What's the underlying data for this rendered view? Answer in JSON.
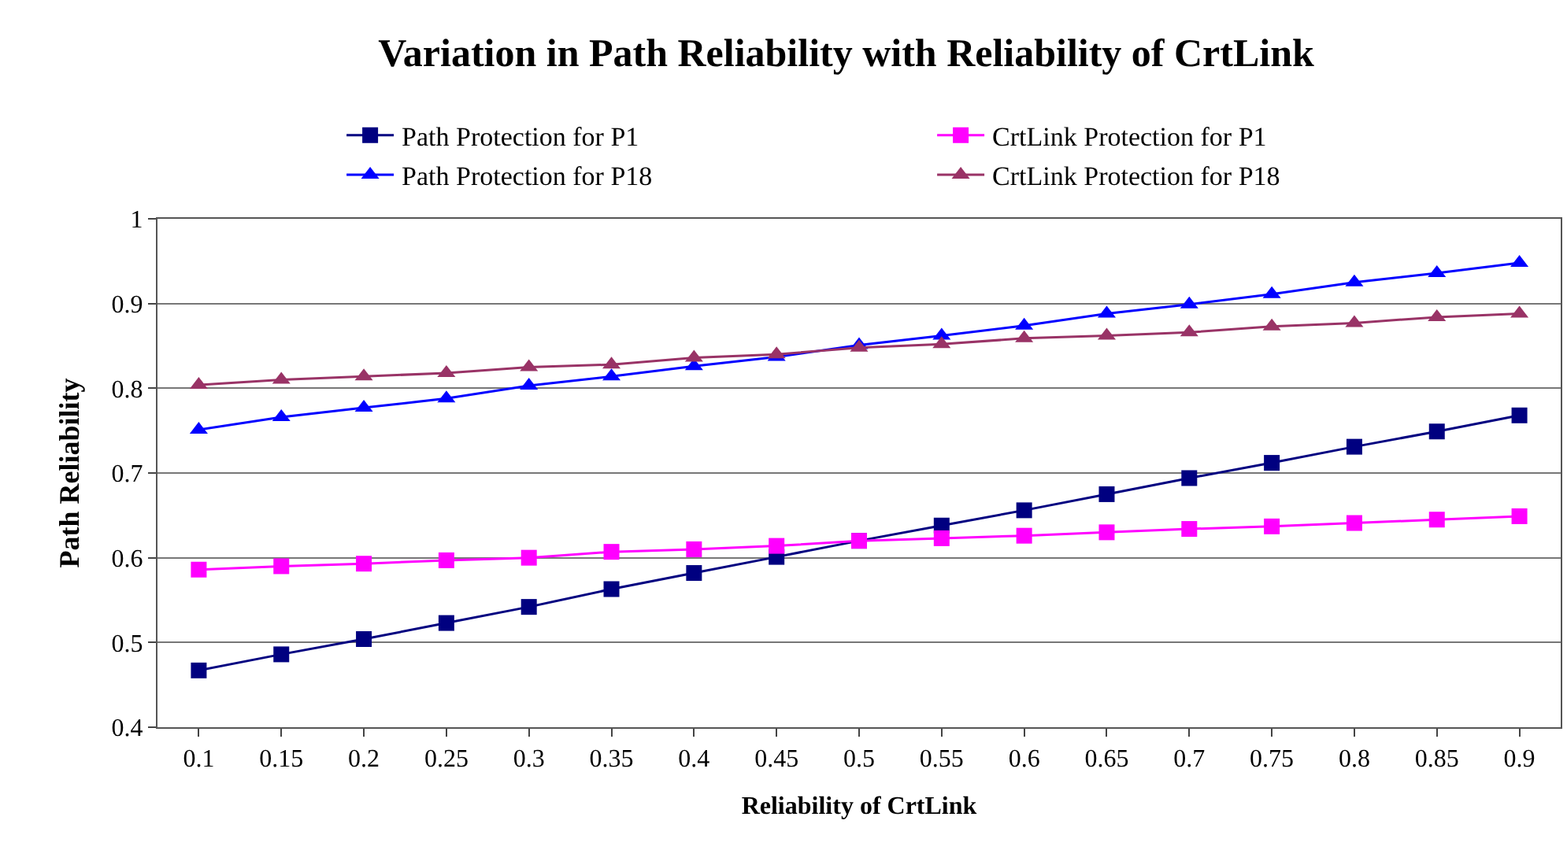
{
  "chart_data": {
    "type": "line",
    "title": "Variation in Path Reliability with Reliability of CrtLink",
    "xlabel": "Reliability of CrtLink",
    "ylabel": "Path Reliability",
    "categories": [
      "0.1",
      "0.15",
      "0.2",
      "0.25",
      "0.3",
      "0.35",
      "0.4",
      "0.45",
      "0.5",
      "0.55",
      "0.6",
      "0.65",
      "0.7",
      "0.75",
      "0.8",
      "0.85",
      "0.9"
    ],
    "ylim": [
      0.4,
      1
    ],
    "yticks": [
      0.4,
      0.5,
      0.6,
      0.7,
      0.8,
      0.9,
      1
    ],
    "grid": "y",
    "legend": "top",
    "line_style": "solid",
    "series": [
      {
        "name": "Path Protection for P1",
        "color": "#000080",
        "marker": "square",
        "values": [
          0.467,
          0.486,
          0.504,
          0.523,
          0.542,
          0.563,
          0.582,
          0.601,
          0.62,
          0.638,
          0.656,
          0.675,
          0.694,
          0.712,
          0.731,
          0.749,
          0.768
        ]
      },
      {
        "name": "CrtLink Protection for P1",
        "color": "#ff00ff",
        "marker": "square",
        "values": [
          0.586,
          0.59,
          0.593,
          0.597,
          0.6,
          0.607,
          0.61,
          0.614,
          0.62,
          0.623,
          0.626,
          0.63,
          0.634,
          0.637,
          0.641,
          0.645,
          0.649
        ]
      },
      {
        "name": "Path Protection for P18",
        "color": "#0000ff",
        "marker": "triangle",
        "values": [
          0.751,
          0.766,
          0.777,
          0.788,
          0.803,
          0.814,
          0.826,
          0.837,
          0.851,
          0.862,
          0.874,
          0.888,
          0.899,
          0.911,
          0.925,
          0.936,
          0.948
        ]
      },
      {
        "name": "CrtLink Protection for P18",
        "color": "#993366",
        "marker": "triangle",
        "values": [
          0.804,
          0.81,
          0.814,
          0.818,
          0.825,
          0.828,
          0.836,
          0.84,
          0.848,
          0.852,
          0.859,
          0.862,
          0.866,
          0.873,
          0.877,
          0.884,
          0.888
        ]
      }
    ]
  }
}
